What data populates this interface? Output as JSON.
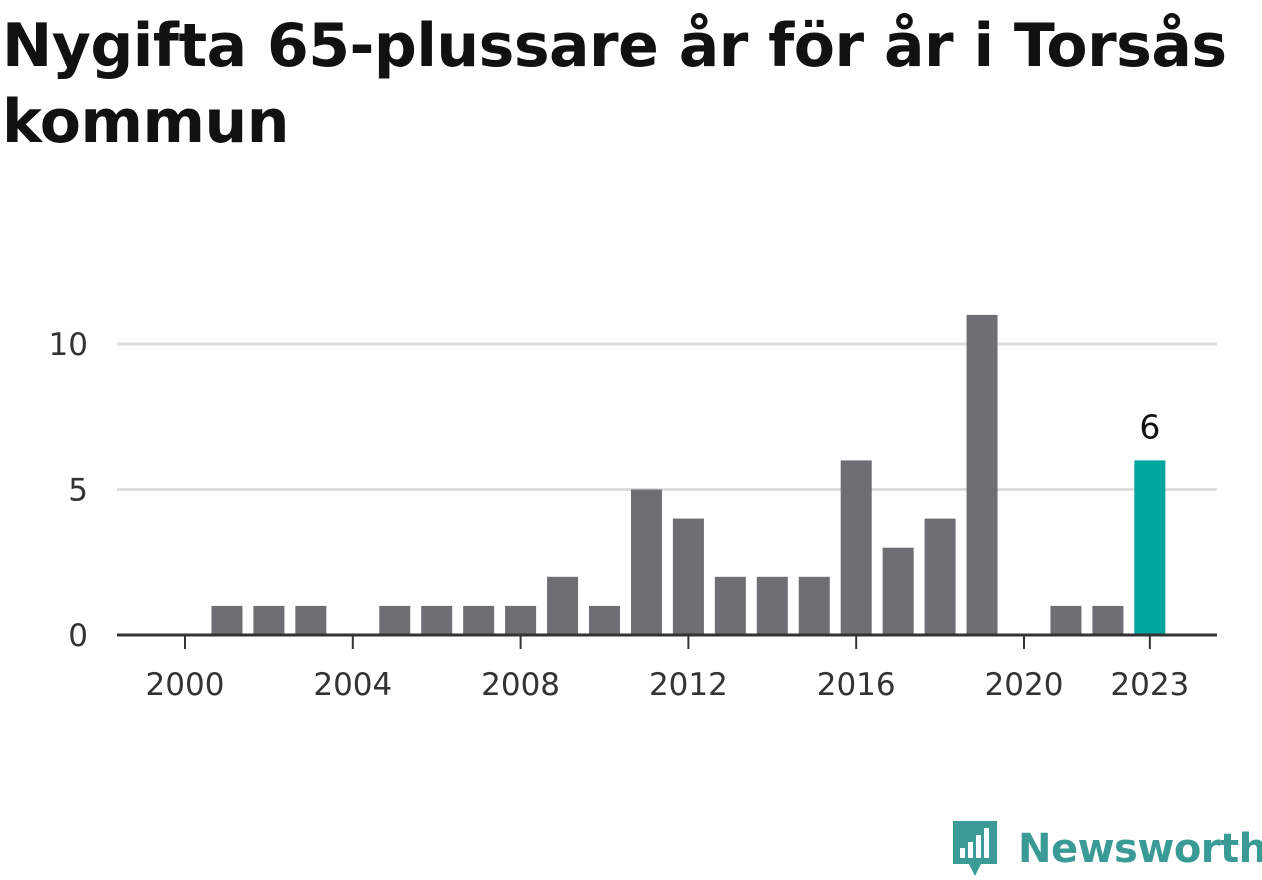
{
  "title": "Nygifta 65-plussare år för år i Torsås kommun",
  "brand": {
    "name": "Newsworthy",
    "color": "#3a9a95",
    "icon": "newsworthy-logo-icon"
  },
  "chart_data": {
    "type": "bar",
    "title": "Nygifta 65-plussare år för år i Torsås kommun",
    "xlabel": "",
    "ylabel": "",
    "categories": [
      2000,
      2001,
      2002,
      2003,
      2004,
      2005,
      2006,
      2007,
      2008,
      2009,
      2010,
      2011,
      2012,
      2013,
      2014,
      2015,
      2016,
      2017,
      2018,
      2019,
      2020,
      2021,
      2022,
      2023
    ],
    "values": [
      0,
      1,
      1,
      1,
      0,
      1,
      1,
      1,
      1,
      2,
      1,
      5,
      4,
      2,
      2,
      2,
      6,
      3,
      4,
      11,
      0,
      1,
      1,
      6
    ],
    "ylim": [
      0,
      11
    ],
    "yticks": [
      0,
      5,
      10
    ],
    "xticks": [
      2000,
      2004,
      2008,
      2012,
      2016,
      2020,
      2023
    ],
    "highlight": {
      "category": 2023,
      "label": "6"
    },
    "colors": {
      "bar": "#6e6e73",
      "highlight": "#00a59d",
      "grid": "#dddddd",
      "axis": "#333333"
    },
    "grid": true
  }
}
